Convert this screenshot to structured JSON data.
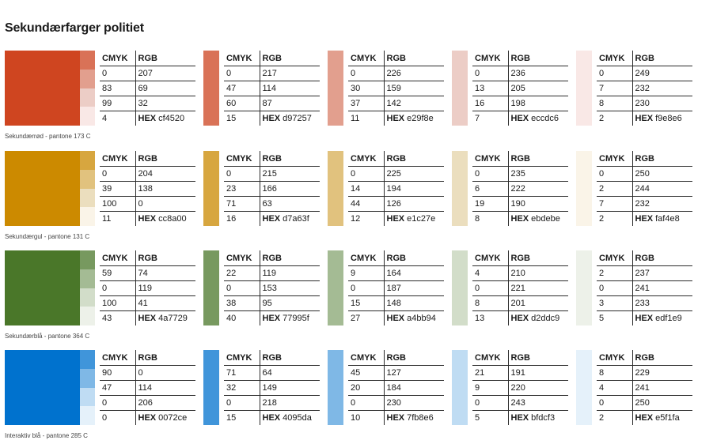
{
  "page_title": "Sekundærfarger politiet",
  "labels": {
    "cmyk": "CMYK",
    "rgb": "RGB",
    "hex": "HEX"
  },
  "rows": [
    {
      "caption": "Sekundærrød - pantone 173 C",
      "colors": [
        {
          "hex": "cf4520",
          "cmyk": [
            "0",
            "83",
            "99",
            "4"
          ],
          "rgb": [
            "207",
            "69",
            "32"
          ]
        },
        {
          "hex": "d97257",
          "cmyk": [
            "0",
            "47",
            "60",
            "15"
          ],
          "rgb": [
            "217",
            "114",
            "87"
          ]
        },
        {
          "hex": "e29f8e",
          "cmyk": [
            "0",
            "30",
            "37",
            "11"
          ],
          "rgb": [
            "226",
            "159",
            "142"
          ]
        },
        {
          "hex": "eccdc6",
          "cmyk": [
            "0",
            "13",
            "16",
            "7"
          ],
          "rgb": [
            "236",
            "205",
            "198"
          ]
        },
        {
          "hex": "f9e8e6",
          "cmyk": [
            "0",
            "7",
            "8",
            "2"
          ],
          "rgb": [
            "249",
            "232",
            "230"
          ]
        }
      ]
    },
    {
      "caption": "Sekundærgul - pantone 131 C",
      "colors": [
        {
          "hex": "cc8a00",
          "cmyk": [
            "0",
            "39",
            "100",
            "11"
          ],
          "rgb": [
            "204",
            "138",
            "0"
          ]
        },
        {
          "hex": "d7a63f",
          "cmyk": [
            "0",
            "23",
            "71",
            "16"
          ],
          "rgb": [
            "215",
            "166",
            "63"
          ]
        },
        {
          "hex": "e1c27e",
          "cmyk": [
            "0",
            "14",
            "44",
            "12"
          ],
          "rgb": [
            "225",
            "194",
            "126"
          ]
        },
        {
          "hex": "ebdebe",
          "cmyk": [
            "0",
            "6",
            "19",
            "8"
          ],
          "rgb": [
            "235",
            "222",
            "190"
          ]
        },
        {
          "hex": "faf4e8",
          "cmyk": [
            "0",
            "2",
            "7",
            "2"
          ],
          "rgb": [
            "250",
            "244",
            "232"
          ]
        }
      ]
    },
    {
      "caption": "Sekundærblå - pantone 364 C",
      "colors": [
        {
          "hex": "4a7729",
          "cmyk": [
            "59",
            "0",
            "100",
            "43"
          ],
          "rgb": [
            "74",
            "119",
            "41"
          ]
        },
        {
          "hex": "77995f",
          "cmyk": [
            "22",
            "0",
            "38",
            "40"
          ],
          "rgb": [
            "119",
            "153",
            "95"
          ]
        },
        {
          "hex": "a4bb94",
          "cmyk": [
            "9",
            "0",
            "15",
            "27"
          ],
          "rgb": [
            "164",
            "187",
            "148"
          ]
        },
        {
          "hex": "d2ddc9",
          "cmyk": [
            "4",
            "0",
            "8",
            "13"
          ],
          "rgb": [
            "210",
            "221",
            "201"
          ]
        },
        {
          "hex": "edf1e9",
          "cmyk": [
            "2",
            "0",
            "3",
            "5"
          ],
          "rgb": [
            "237",
            "241",
            "233"
          ]
        }
      ]
    },
    {
      "caption": "Interaktiv blå - pantone 285 C",
      "colors": [
        {
          "hex": "0072ce",
          "cmyk": [
            "90",
            "47",
            "0",
            "0"
          ],
          "rgb": [
            "0",
            "114",
            "206"
          ]
        },
        {
          "hex": "4095da",
          "cmyk": [
            "71",
            "32",
            "0",
            "15"
          ],
          "rgb": [
            "64",
            "149",
            "218"
          ]
        },
        {
          "hex": "7fb8e6",
          "cmyk": [
            "45",
            "20",
            "0",
            "10"
          ],
          "rgb": [
            "127",
            "184",
            "230"
          ]
        },
        {
          "hex": "bfdcf3",
          "cmyk": [
            "21",
            "9",
            "0",
            "5"
          ],
          "rgb": [
            "191",
            "220",
            "243"
          ]
        },
        {
          "hex": "e5f1fa",
          "cmyk": [
            "8",
            "4",
            "0",
            "2"
          ],
          "rgb": [
            "229",
            "241",
            "250"
          ]
        }
      ]
    }
  ]
}
